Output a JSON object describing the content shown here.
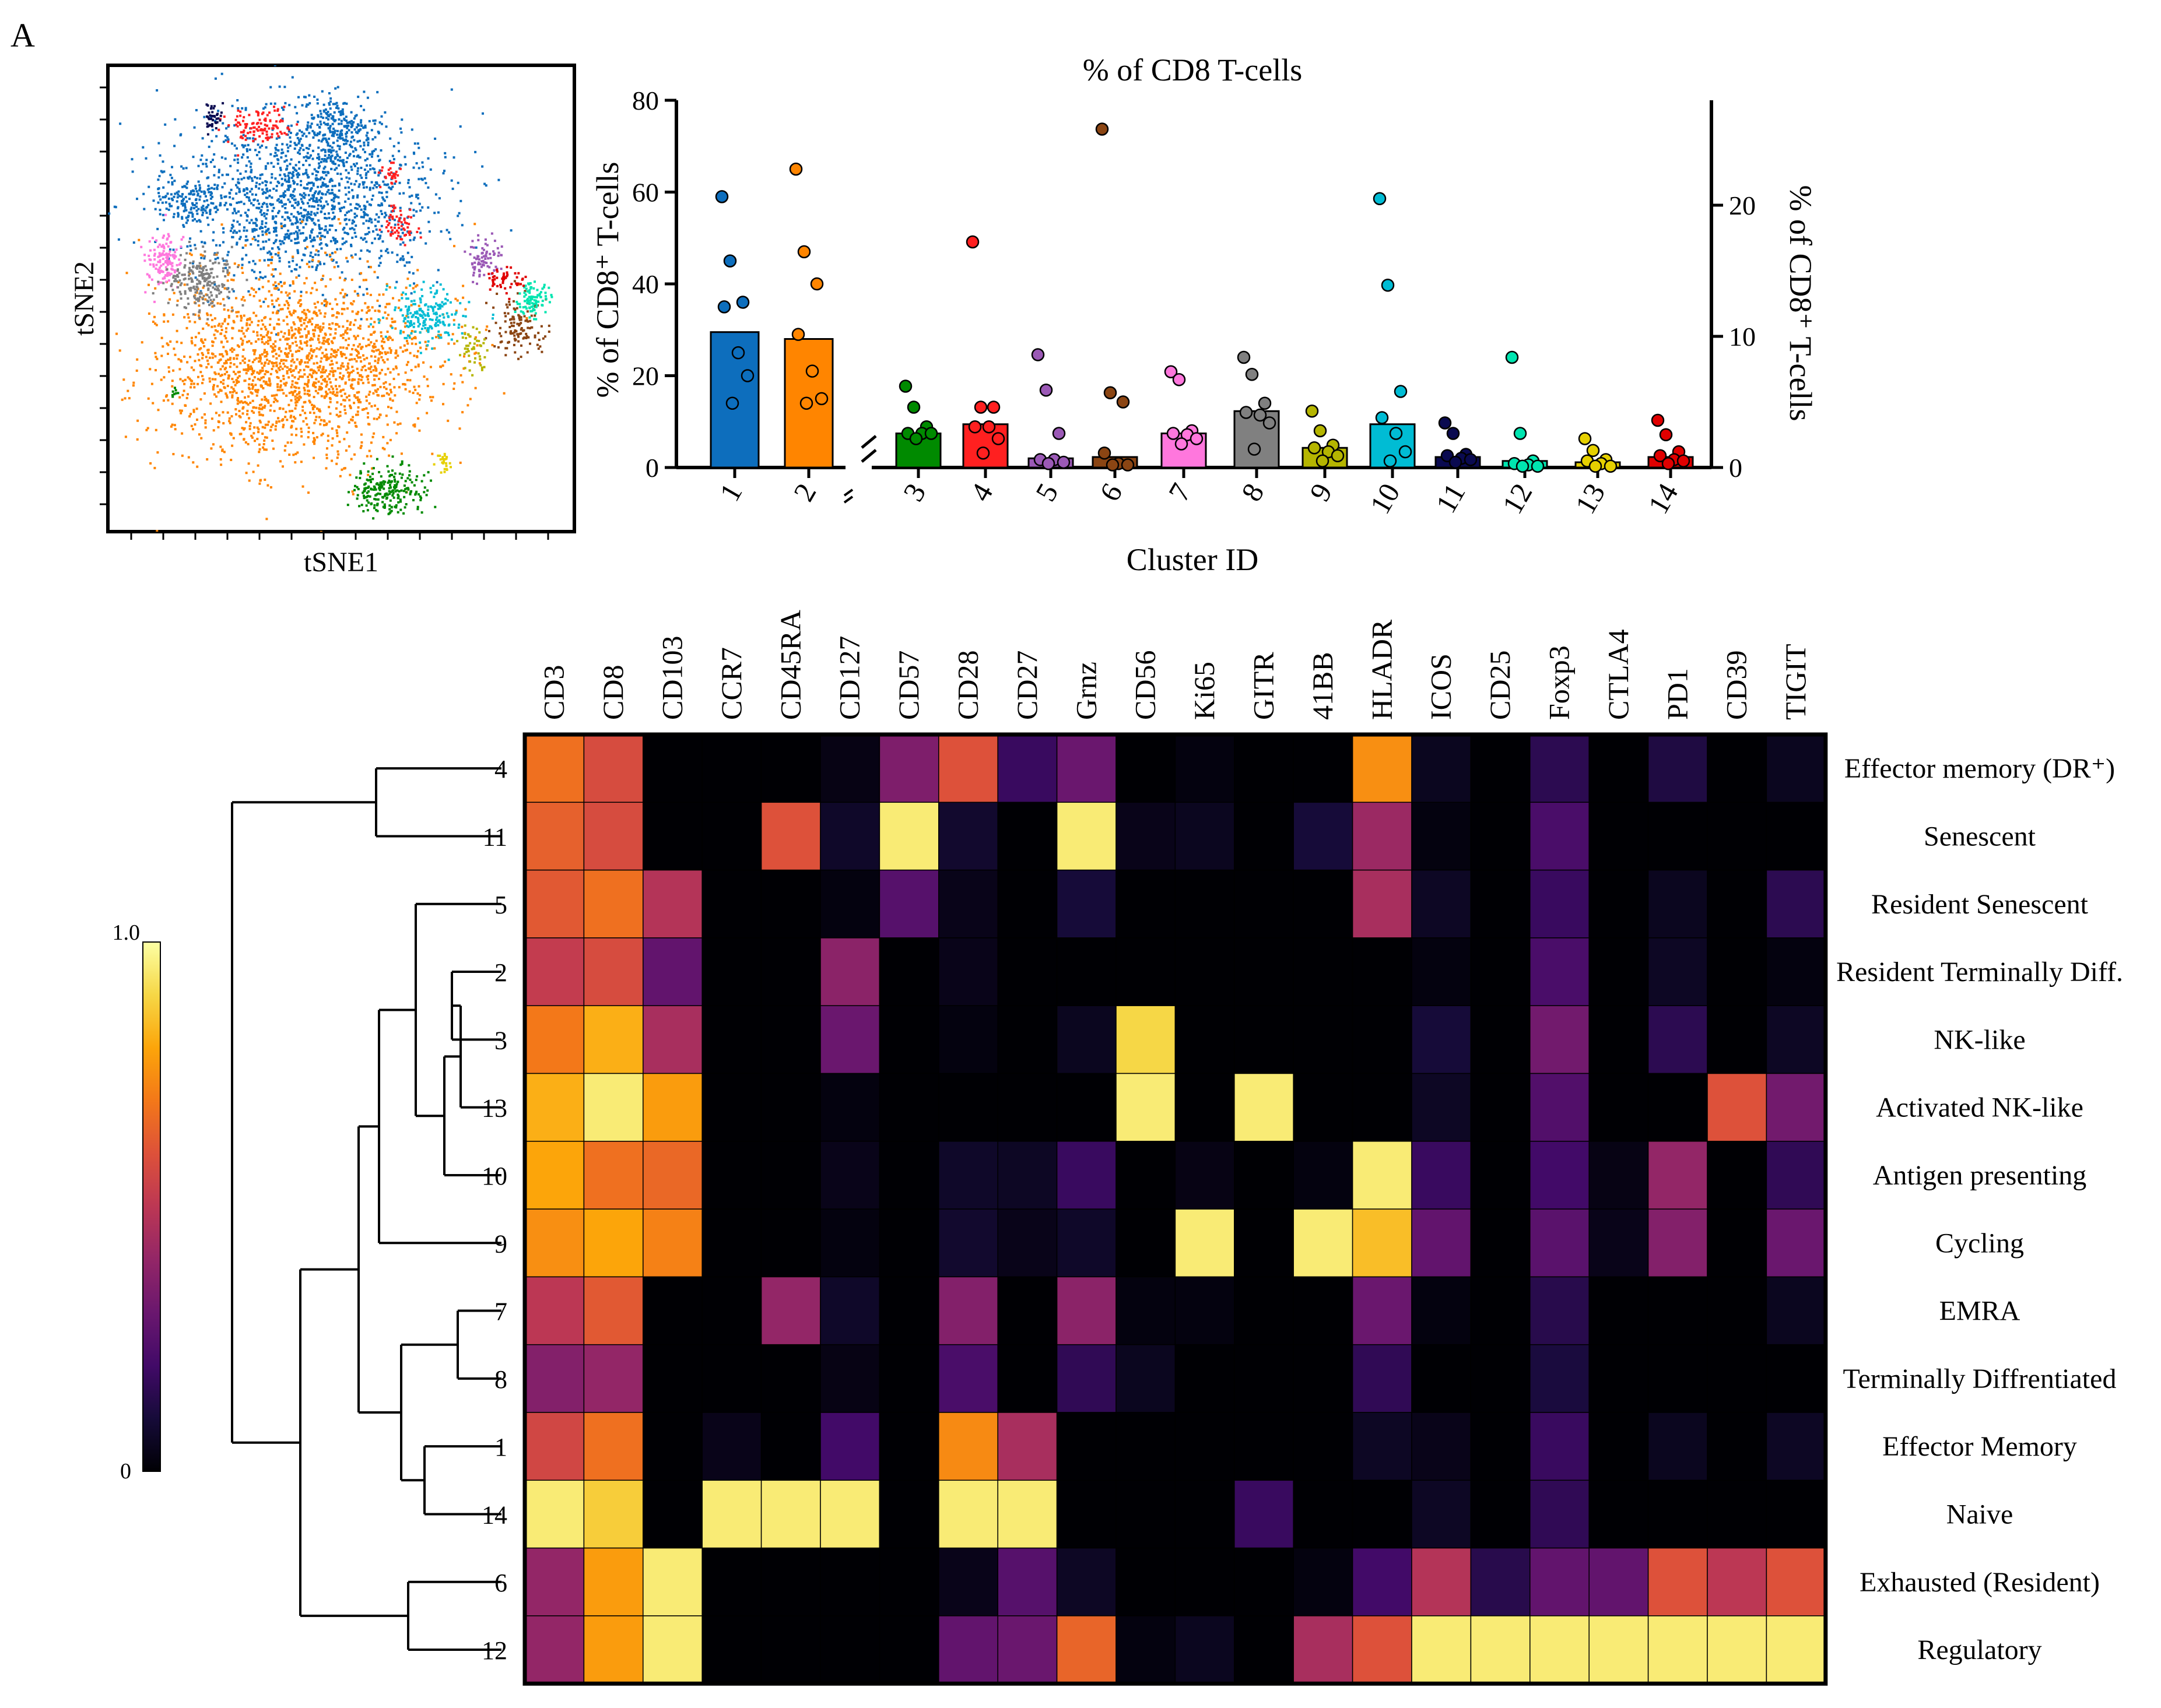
{
  "panel_label": "A",
  "colors": {
    "cluster": [
      "#0d6ebd",
      "#ff8500",
      "#008a00",
      "#ff2020",
      "#9b59b6",
      "#8b4513",
      "#ff77dd",
      "#808080",
      "#b5b500",
      "#00bcd4",
      "#0a0a50",
      "#00e5b0",
      "#e6d000",
      "#e00000"
    ]
  },
  "chart_data": [
    {
      "type": "scatter",
      "xlabel": "tSNE1",
      "ylabel": "tSNE2",
      "title": "",
      "clusters": [
        {
          "id": 1,
          "cx": 0.42,
          "cy": 0.28,
          "rx": 0.28,
          "ry": 0.18,
          "n": 1400
        },
        {
          "id": 1,
          "cx": 0.48,
          "cy": 0.14,
          "rx": 0.08,
          "ry": 0.08,
          "n": 250
        },
        {
          "id": 1,
          "cx": 0.18,
          "cy": 0.29,
          "rx": 0.08,
          "ry": 0.06,
          "n": 150
        },
        {
          "id": 2,
          "cx": 0.4,
          "cy": 0.64,
          "rx": 0.3,
          "ry": 0.2,
          "n": 1900
        },
        {
          "id": 3,
          "cx": 0.6,
          "cy": 0.91,
          "rx": 0.08,
          "ry": 0.05,
          "n": 220
        },
        {
          "id": 4,
          "cx": 0.32,
          "cy": 0.13,
          "rx": 0.07,
          "ry": 0.04,
          "n": 110
        },
        {
          "id": 4,
          "cx": 0.62,
          "cy": 0.34,
          "rx": 0.04,
          "ry": 0.04,
          "n": 60
        },
        {
          "id": 4,
          "cx": 0.6,
          "cy": 0.23,
          "rx": 0.025,
          "ry": 0.02,
          "n": 30
        },
        {
          "id": 5,
          "cx": 0.8,
          "cy": 0.41,
          "rx": 0.04,
          "ry": 0.04,
          "n": 80
        },
        {
          "id": 6,
          "cx": 0.88,
          "cy": 0.56,
          "rx": 0.06,
          "ry": 0.06,
          "n": 120
        },
        {
          "id": 7,
          "cx": 0.12,
          "cy": 0.42,
          "rx": 0.04,
          "ry": 0.06,
          "n": 130
        },
        {
          "id": 8,
          "cx": 0.2,
          "cy": 0.46,
          "rx": 0.07,
          "ry": 0.06,
          "n": 220
        },
        {
          "id": 9,
          "cx": 0.78,
          "cy": 0.6,
          "rx": 0.03,
          "ry": 0.05,
          "n": 50
        },
        {
          "id": 10,
          "cx": 0.68,
          "cy": 0.53,
          "rx": 0.08,
          "ry": 0.06,
          "n": 200
        },
        {
          "id": 11,
          "cx": 0.22,
          "cy": 0.11,
          "rx": 0.02,
          "ry": 0.03,
          "n": 40
        },
        {
          "id": 12,
          "cx": 0.91,
          "cy": 0.5,
          "rx": 0.035,
          "ry": 0.035,
          "n": 90
        },
        {
          "id": 13,
          "cx": 0.72,
          "cy": 0.85,
          "rx": 0.015,
          "ry": 0.025,
          "n": 25
        },
        {
          "id": 14,
          "cx": 0.85,
          "cy": 0.46,
          "rx": 0.04,
          "ry": 0.03,
          "n": 50
        },
        {
          "id": 3,
          "cx": 0.14,
          "cy": 0.7,
          "rx": 0.012,
          "ry": 0.012,
          "n": 8
        }
      ]
    },
    {
      "type": "bar",
      "title": "% of CD8 T-cells",
      "xlabel": "Cluster ID",
      "ylabel": "% of CD8⁺ T-cells",
      "ylabel2": "% of CD8⁺ T-cells",
      "categories": [
        "1",
        "2",
        "3",
        "4",
        "5",
        "6",
        "7",
        "8",
        "9",
        "10",
        "11",
        "12",
        "13",
        "14"
      ],
      "axis_assignment": [
        "left",
        "left",
        "right",
        "right",
        "right",
        "right",
        "right",
        "right",
        "right",
        "right",
        "right",
        "right",
        "right",
        "right"
      ],
      "ylim": [
        0,
        80
      ],
      "y_ticks": [
        "0",
        "20",
        "40",
        "60",
        "80"
      ],
      "ylim2": [
        0,
        28
      ],
      "y2_ticks": [
        "0",
        "10",
        "20"
      ],
      "values": [
        29.5,
        28,
        2.6,
        3.3,
        0.7,
        0.8,
        2.6,
        4.3,
        1.5,
        3.3,
        0.8,
        0.5,
        0.4,
        0.8
      ],
      "points": [
        [
          59,
          45,
          36,
          35,
          25,
          20,
          14
        ],
        [
          65,
          47,
          40,
          29,
          21,
          15,
          14
        ],
        [
          6.2,
          4.6,
          3.1,
          2.6,
          2.6,
          2.6,
          2.2
        ],
        [
          17.2,
          4.6,
          4.6,
          3.1,
          3.1,
          2.2,
          1.1
        ],
        [
          8.6,
          5.9,
          2.6,
          0.6,
          0.6,
          0.4,
          0.3
        ],
        [
          25.8,
          5.7,
          5.0,
          1.1,
          0.3,
          0.2,
          0.2
        ],
        [
          7.3,
          6.7,
          2.8,
          2.6,
          2.5,
          2.2,
          1.8
        ],
        [
          8.4,
          7.1,
          4.9,
          4.2,
          4.0,
          3.4,
          1.4
        ],
        [
          4.3,
          2.8,
          1.7,
          1.5,
          1.2,
          0.9,
          0.5
        ],
        [
          20.5,
          13.9,
          5.8,
          3.8,
          2.6,
          1.2,
          0.5
        ],
        [
          3.4,
          2.6,
          1.0,
          0.9,
          0.7,
          0.6,
          0.4
        ],
        [
          8.4,
          2.6,
          0.5,
          0.3,
          0.2,
          0.1,
          0.1
        ],
        [
          2.2,
          1.3,
          0.6,
          0.5,
          0.3,
          0.1,
          0.1
        ],
        [
          3.6,
          2.5,
          1.2,
          0.9,
          0.6,
          0.5,
          0.3
        ]
      ]
    },
    {
      "type": "heatmap",
      "columns": [
        "CD3",
        "CD8",
        "CD103",
        "CCR7",
        "CD45RA",
        "CD127",
        "CD57",
        "CD28",
        "CD27",
        "Grnz",
        "CD56",
        "Ki65",
        "GITR",
        "41BB",
        "HLADR",
        "ICOS",
        "CD25",
        "Foxp3",
        "CTLA4",
        "PD1",
        "CD39",
        "TIGIT"
      ],
      "rows": [
        {
          "id": "4",
          "label": "Effector memory (DR⁺)",
          "values": [
            0.68,
            0.58,
            0,
            0,
            0,
            0.03,
            0.35,
            0.6,
            0.18,
            0.3,
            0,
            0.02,
            0,
            0,
            0.75,
            0.05,
            0,
            0.15,
            0,
            0.12,
            0,
            0.05
          ]
        },
        {
          "id": "11",
          "label": "Senescent",
          "values": [
            0.64,
            0.58,
            0,
            0,
            0.6,
            0.07,
            0.95,
            0.08,
            0,
            0.95,
            0.04,
            0.05,
            0,
            0.1,
            0.42,
            0.02,
            0,
            0.22,
            0,
            0,
            0,
            0
          ]
        },
        {
          "id": "5",
          "label": "Resident Senescent",
          "values": [
            0.62,
            0.68,
            0.48,
            0,
            0,
            0.02,
            0.25,
            0.04,
            0,
            0.1,
            0,
            0,
            0,
            0,
            0.45,
            0.06,
            0,
            0.18,
            0,
            0.05,
            0,
            0.15
          ]
        },
        {
          "id": "2",
          "label": "Resident Terminally Diff.",
          "values": [
            0.52,
            0.58,
            0.28,
            0,
            0,
            0.38,
            0,
            0.04,
            0,
            0,
            0,
            0,
            0,
            0,
            0,
            0.02,
            0,
            0.22,
            0,
            0.06,
            0,
            0.02
          ]
        },
        {
          "id": "3",
          "label": "NK-like",
          "values": [
            0.7,
            0.82,
            0.45,
            0,
            0,
            0.3,
            0,
            0.02,
            0,
            0.05,
            0.9,
            0,
            0,
            0,
            0,
            0.1,
            0,
            0.32,
            0,
            0.15,
            0,
            0.06
          ]
        },
        {
          "id": "13",
          "label": "Activated NK-like",
          "values": [
            0.82,
            0.95,
            0.78,
            0,
            0,
            0.02,
            0,
            0,
            0,
            0,
            0.95,
            0,
            0.95,
            0,
            0,
            0.06,
            0,
            0.24,
            0,
            0,
            0.6,
            0.32
          ]
        },
        {
          "id": "10",
          "label": "Antigen presenting",
          "values": [
            0.8,
            0.68,
            0.66,
            0,
            0,
            0.04,
            0,
            0.07,
            0.06,
            0.18,
            0,
            0.03,
            0,
            0.02,
            0.95,
            0.18,
            0,
            0.2,
            0.03,
            0.4,
            0,
            0.16
          ]
        },
        {
          "id": "9",
          "label": "Cycling",
          "values": [
            0.75,
            0.8,
            0.72,
            0,
            0,
            0.02,
            0,
            0.08,
            0.04,
            0.07,
            0,
            0.95,
            0,
            0.95,
            0.85,
            0.28,
            0,
            0.26,
            0.04,
            0.36,
            0,
            0.3
          ]
        },
        {
          "id": "7",
          "label": "EMRA",
          "values": [
            0.5,
            0.62,
            0,
            0,
            0.4,
            0.07,
            0,
            0.36,
            0,
            0.38,
            0.02,
            0.02,
            0,
            0,
            0.3,
            0.02,
            0,
            0.14,
            0,
            0,
            0,
            0.05
          ]
        },
        {
          "id": "8",
          "label": "Terminally Diffrentiated",
          "values": [
            0.36,
            0.4,
            0,
            0,
            0,
            0.03,
            0,
            0.22,
            0,
            0.16,
            0.05,
            0,
            0,
            0,
            0.16,
            0,
            0,
            0.11,
            0,
            0,
            0,
            0
          ]
        },
        {
          "id": "1",
          "label": "Effector Memory",
          "values": [
            0.56,
            0.68,
            0,
            0.04,
            0,
            0.2,
            0,
            0.74,
            0.45,
            0,
            0,
            0,
            0,
            0,
            0.06,
            0.04,
            0,
            0.18,
            0,
            0.05,
            0,
            0.06
          ]
        },
        {
          "id": "14",
          "label": "Naive",
          "values": [
            0.95,
            0.88,
            0,
            0.95,
            0.95,
            0.95,
            0,
            0.95,
            0.95,
            0,
            0,
            0,
            0.18,
            0,
            0,
            0.06,
            0,
            0.16,
            0,
            0,
            0,
            0
          ]
        },
        {
          "id": "6",
          "label": "Exhausted (Resident)",
          "values": [
            0.4,
            0.78,
            0.95,
            0,
            0,
            0,
            0,
            0.04,
            0.25,
            0.06,
            0,
            0,
            0,
            0.02,
            0.2,
            0.48,
            0.14,
            0.28,
            0.28,
            0.6,
            0.5,
            0.6
          ]
        },
        {
          "id": "12",
          "label": "Regulatory",
          "values": [
            0.4,
            0.78,
            0.95,
            0,
            0,
            0,
            0,
            0.28,
            0.3,
            0.65,
            0.02,
            0.05,
            0,
            0.45,
            0.6,
            0.95,
            0.95,
            0.95,
            0.95,
            0.95,
            0.95,
            0.95
          ]
        }
      ],
      "colorbar": {
        "min_label": "0",
        "max_label": "1.0"
      },
      "dendrogram": {
        "merges": [
          [
            4,
            11,
            "4,11"
          ],
          [
            2,
            3,
            "13"
          ],
          [
            "2,3",
            "13"
          ],
          [
            "2,3,13",
            "10"
          ],
          [
            5,
            "2,3,13,10"
          ],
          [
            "5,2,3,13,10",
            9
          ],
          [
            7,
            8
          ],
          [
            1,
            14
          ],
          [
            "7,8",
            "1,14"
          ],
          [
            "3grp",
            "7814"
          ],
          [
            6,
            12
          ],
          [
            "mid",
            "6,12"
          ],
          [
            "4,11",
            "all"
          ]
        ]
      }
    }
  ]
}
